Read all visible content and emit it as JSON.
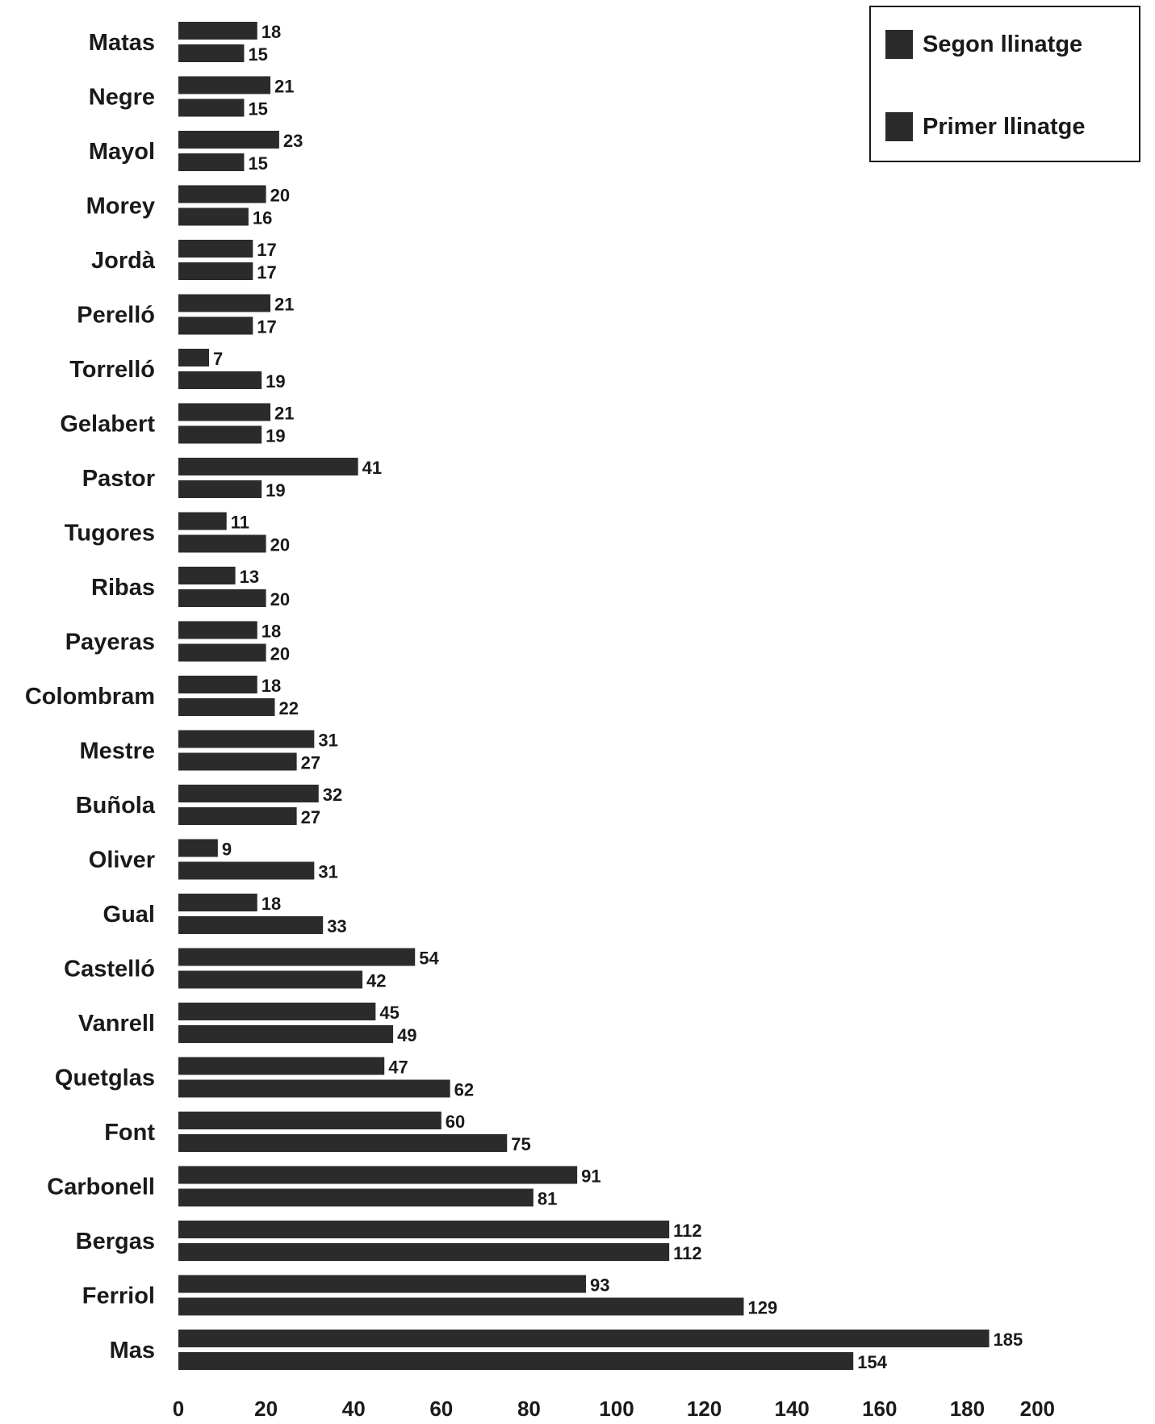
{
  "colors": {
    "bar": "#2b2b2b",
    "text": "#1a1a1a",
    "background": "#ffffff"
  },
  "legend": {
    "placement": "top-right",
    "entries": [
      "Segon llinatge",
      "Primer llinatge"
    ]
  },
  "chart_data": {
    "type": "bar",
    "orientation": "horizontal",
    "categories": [
      "Matas",
      "Negre",
      "Mayol",
      "Morey",
      "Jordà",
      "Perelló",
      "Torrelló",
      "Gelabert",
      "Pastor",
      "Tugores",
      "Ribas",
      "Payeras",
      "Colombram",
      "Mestre",
      "Buñola",
      "Oliver",
      "Gual",
      "Castelló",
      "Vanrell",
      "Quetglas",
      "Font",
      "Carbonell",
      "Bergas",
      "Ferriol",
      "Mas"
    ],
    "series": [
      {
        "name": "Segon llinatge",
        "values": [
          18,
          21,
          23,
          20,
          17,
          21,
          7,
          21,
          41,
          11,
          13,
          18,
          18,
          31,
          32,
          9,
          18,
          54,
          45,
          47,
          60,
          91,
          112,
          93,
          185
        ]
      },
      {
        "name": "Primer llinatge",
        "values": [
          15,
          15,
          15,
          16,
          17,
          17,
          19,
          19,
          19,
          20,
          20,
          20,
          22,
          27,
          27,
          31,
          33,
          42,
          49,
          62,
          75,
          81,
          112,
          129,
          154
        ]
      }
    ],
    "xlim": [
      0,
      200
    ],
    "xticks": [
      "0",
      "20",
      "40",
      "60",
      "80",
      "100",
      "120",
      "140",
      "160",
      "180",
      "200"
    ],
    "title": "",
    "xlabel": "",
    "ylabel": "",
    "grid": false,
    "data_labels": true
  }
}
